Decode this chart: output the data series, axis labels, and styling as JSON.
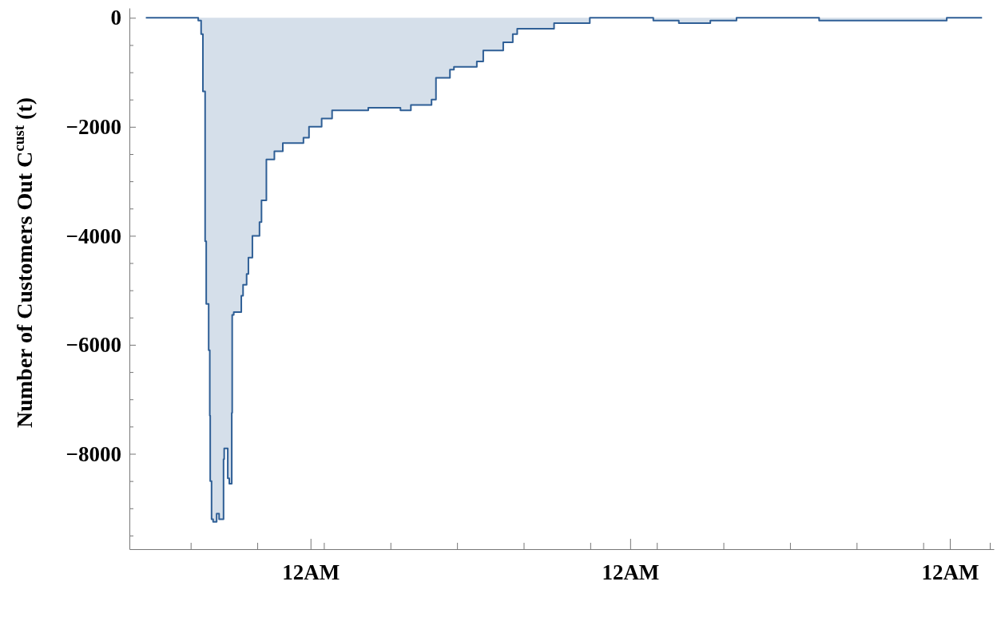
{
  "chart_data": {
    "type": "step",
    "ylabel": "Number of Customers Out C$^{cust}$ (t)",
    "xlim": [
      "2000-01-01T10:24",
      "2000-01-04T03:18"
    ],
    "xticks": [
      {
        "value": "2000-01-01T15:00",
        "label": null
      },
      {
        "value": "2000-01-01T20:00",
        "label": null
      },
      {
        "value": "2000-01-02T00:00",
        "label": "12AM"
      },
      {
        "value": "2000-01-02T01:00",
        "label": null
      },
      {
        "value": "2000-01-02T06:00",
        "label": null
      },
      {
        "value": "2000-01-02T11:00",
        "label": null
      },
      {
        "value": "2000-01-02T16:00",
        "label": null
      },
      {
        "value": "2000-01-02T21:00",
        "label": null
      },
      {
        "value": "2000-01-03T00:00",
        "label": "12AM"
      },
      {
        "value": "2000-01-03T02:00",
        "label": null
      },
      {
        "value": "2000-01-03T07:00",
        "label": null
      },
      {
        "value": "2000-01-03T12:00",
        "label": null
      },
      {
        "value": "2000-01-03T17:00",
        "label": null
      },
      {
        "value": "2000-01-03T22:00",
        "label": null
      },
      {
        "value": "2000-01-04T00:00",
        "label": "12AM"
      },
      {
        "value": "2000-01-04T03:00",
        "label": null
      }
    ],
    "ylim": [
      -9750,
      180
    ],
    "yticks": [
      {
        "value": -9500,
        "label": null
      },
      {
        "value": -9000,
        "label": null
      },
      {
        "value": -8500,
        "label": null
      },
      {
        "value": -8000,
        "label": "−8000"
      },
      {
        "value": -7500,
        "label": null
      },
      {
        "value": -7000,
        "label": null
      },
      {
        "value": -6500,
        "label": null
      },
      {
        "value": -6000,
        "label": "−6000"
      },
      {
        "value": -5500,
        "label": null
      },
      {
        "value": -5000,
        "label": null
      },
      {
        "value": -4500,
        "label": null
      },
      {
        "value": -4000,
        "label": "−4000"
      },
      {
        "value": -3500,
        "label": null
      },
      {
        "value": -3000,
        "label": null
      },
      {
        "value": -2500,
        "label": null
      },
      {
        "value": -2000,
        "label": "−2000"
      },
      {
        "value": -1500,
        "label": null
      },
      {
        "value": -1000,
        "label": null
      },
      {
        "value": -500,
        "label": null
      },
      {
        "value": 0,
        "label": "0"
      }
    ],
    "grid": false,
    "series": [
      {
        "color": "#2f5f96",
        "x": [
          "2000-01-01T11:38",
          "2000-01-01T15:34",
          "2000-01-01T15:47",
          "2000-01-01T15:55",
          "2000-01-01T16:05",
          "2000-01-01T16:10",
          "2000-01-01T16:21",
          "2000-01-01T16:26",
          "2000-01-01T16:28",
          "2000-01-01T16:34",
          "2000-01-01T16:41",
          "2000-01-01T16:57",
          "2000-01-01T17:08",
          "2000-01-01T17:28",
          "2000-01-01T17:31",
          "2000-01-01T17:47",
          "2000-01-01T17:54",
          "2000-01-01T18:05",
          "2000-01-01T18:07",
          "2000-01-01T18:14",
          "2000-01-01T18:48",
          "2000-01-01T18:56",
          "2000-01-01T19:12",
          "2000-01-01T19:20",
          "2000-01-01T19:38",
          "2000-01-01T20:10",
          "2000-01-01T20:19",
          "2000-01-01T20:41",
          "2000-01-01T21:17",
          "2000-01-01T21:55",
          "2000-01-01T23:28",
          "2000-01-01T23:53",
          "2000-01-02T00:50",
          "2000-01-02T01:37",
          "2000-01-02T04:20",
          "2000-01-02T06:45",
          "2000-01-02T07:32",
          "2000-01-02T09:05",
          "2000-01-02T09:25",
          "2000-01-02T10:28",
          "2000-01-02T10:46",
          "2000-01-02T12:29",
          "2000-01-02T12:58",
          "2000-01-02T14:28",
          "2000-01-02T15:11",
          "2000-01-02T15:31",
          "2000-01-02T18:17",
          "2000-01-02T20:58",
          "2000-01-03T01:44",
          "2000-01-03T03:39",
          "2000-01-03T06:01",
          "2000-01-03T07:59",
          "2000-01-03T08:53",
          "2000-01-03T14:11",
          "2000-01-03T18:16",
          "2000-01-03T21:19",
          "2000-01-03T23:46",
          "2000-01-04T00:23",
          "2000-01-04T02:25"
        ],
        "values": [
          0,
          -50,
          -300,
          -1350,
          -4100,
          -5250,
          -6100,
          -7300,
          -8500,
          -9200,
          -9250,
          -9100,
          -9200,
          -8100,
          -7900,
          -8450,
          -8550,
          -7250,
          -5450,
          -5400,
          -5100,
          -4900,
          -4700,
          -4400,
          -4000,
          -3750,
          -3350,
          -2600,
          -2450,
          -2300,
          -2200,
          -2000,
          -1850,
          -1700,
          -1650,
          -1700,
          -1600,
          -1500,
          -1100,
          -950,
          -900,
          -800,
          -600,
          -450,
          -300,
          -200,
          -100,
          0,
          -50,
          -100,
          -50,
          0,
          0,
          -50,
          -50,
          -50,
          0,
          0,
          0
        ]
      }
    ]
  }
}
